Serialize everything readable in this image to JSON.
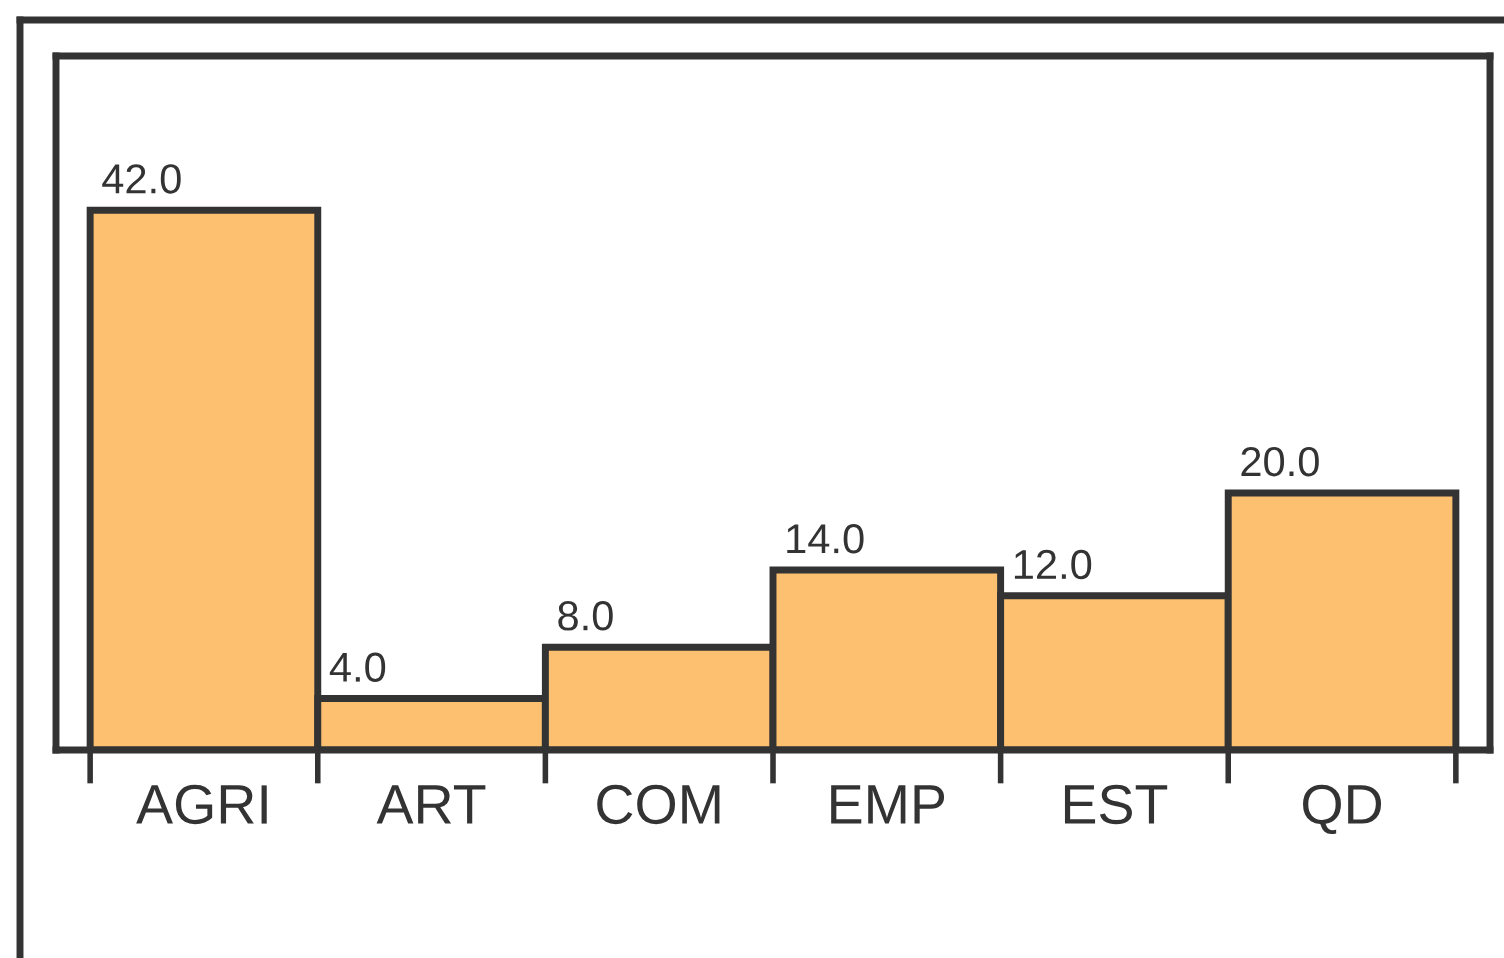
{
  "chart_data": {
    "type": "bar",
    "categories": [
      "AGRI",
      "ART",
      "COM",
      "EMP",
      "EST",
      "QD"
    ],
    "values": [
      42.0,
      4.0,
      8.0,
      14.0,
      12.0,
      20.0
    ],
    "value_labels": [
      "42.0",
      "4.0",
      "8.0",
      "14.0",
      "12.0",
      "20.0"
    ],
    "color": "#fdc070",
    "ylim": [
      0,
      54
    ],
    "grid": false,
    "legend": false
  }
}
